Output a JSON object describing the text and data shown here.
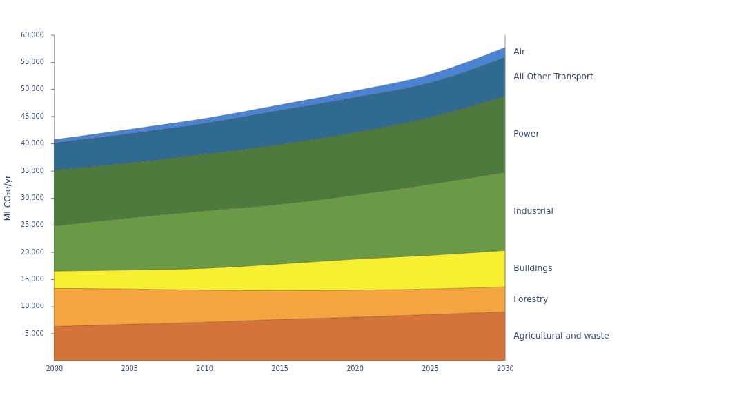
{
  "chart_data": {
    "type": "area",
    "stacked": true,
    "ylabel": "Mt CO₂e/yr",
    "x": [
      2000,
      2005,
      2010,
      2015,
      2020,
      2025,
      2030
    ],
    "xlim": [
      2000,
      2030
    ],
    "xticks": [
      2000,
      2005,
      2010,
      2015,
      2020,
      2025,
      2030
    ],
    "ylim": [
      0,
      60000
    ],
    "yticks": [
      {
        "value": 0,
        "label": null
      },
      {
        "value": 5000,
        "label": "5,000"
      },
      {
        "value": 10000,
        "label": "10,000"
      },
      {
        "value": 15000,
        "label": "15,000"
      },
      {
        "value": 20000,
        "label": "20,000"
      },
      {
        "value": 25000,
        "label": "25,000"
      },
      {
        "value": 30000,
        "label": "30,000"
      },
      {
        "value": 35000,
        "label": "35,000"
      },
      {
        "value": 40000,
        "label": "40,000"
      },
      {
        "value": 45000,
        "label": "45,000"
      },
      {
        "value": 50000,
        "label": "50,000"
      },
      {
        "value": 55000,
        "label": "55,000"
      },
      {
        "value": 60000,
        "label": "60,000"
      }
    ],
    "grid": false,
    "legend": "right",
    "series": [
      {
        "name": "Agricultural and waste",
        "color": "#d4733a",
        "values": [
          6300,
          6700,
          7100,
          7600,
          8000,
          8500,
          9000
        ]
      },
      {
        "name": "Forestry",
        "color": "#f5a53f",
        "values": [
          7000,
          6500,
          5900,
          5300,
          5000,
          4700,
          4600
        ]
      },
      {
        "name": "Buildings",
        "color": "#f7f030",
        "values": [
          3200,
          3500,
          4000,
          4900,
          5700,
          6200,
          6700
        ]
      },
      {
        "name": "Industrial",
        "color": "#6a9a45",
        "values": [
          8300,
          9600,
          10600,
          11000,
          11800,
          13100,
          14400
        ]
      },
      {
        "name": "Power",
        "color": "#4e7a3e",
        "values": [
          10300,
          10100,
          10400,
          11000,
          11500,
          12300,
          14000
        ]
      },
      {
        "name": "All Other Transport",
        "color": "#2f6a91",
        "values": [
          5000,
          5400,
          5700,
          6300,
          6500,
          6400,
          7200
        ]
      },
      {
        "name": "Air",
        "color": "#4a82d4",
        "values": [
          600,
          800,
          900,
          1000,
          1200,
          1500,
          1800
        ]
      }
    ]
  }
}
